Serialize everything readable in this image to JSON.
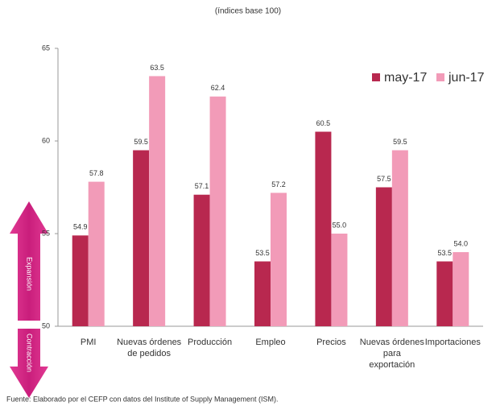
{
  "chart_data": {
    "type": "bar",
    "subtitle": "(índices base 100)",
    "categories": [
      "PMI",
      "Nuevas órdenes de pedidos",
      "Producción",
      "Empleo",
      "Precios",
      "Nuevas órdenes para exportación",
      "Importaciones"
    ],
    "series": [
      {
        "name": "may-17",
        "color": "#b8284f",
        "values": [
          54.9,
          59.5,
          57.1,
          53.5,
          60.5,
          57.5,
          53.5
        ]
      },
      {
        "name": "jun-17",
        "color": "#f29bb8",
        "values": [
          57.8,
          63.5,
          62.4,
          57.2,
          55.0,
          59.5,
          54.0
        ],
        "value_labels": [
          "57.8",
          "63.5",
          "62.4",
          "57.2",
          "55.0",
          "59.5",
          "54.0"
        ]
      }
    ],
    "ylim": [
      50,
      65
    ],
    "yticks": [
      50,
      55,
      60,
      65
    ],
    "legend": "top-right",
    "annotations": [
      "Expansión",
      "Contracción"
    ],
    "source": "Fuente: Elaborado por el CEFP con datos del Institute of Supply Management (ISM)."
  }
}
